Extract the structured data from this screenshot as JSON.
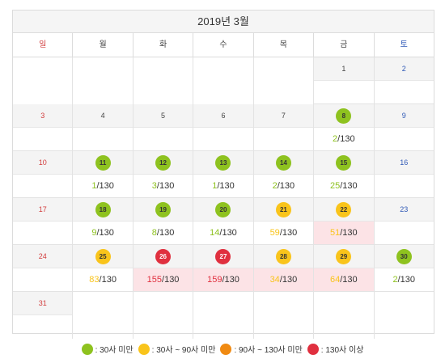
{
  "calendar": {
    "title": "2019년 3월",
    "weekdays": [
      "일",
      "월",
      "화",
      "수",
      "목",
      "금",
      "토"
    ],
    "denominator": "/130",
    "weeks": [
      [
        null,
        null,
        null,
        null,
        null,
        {
          "day": "1"
        },
        {
          "day": "2"
        }
      ],
      [
        {
          "day": "3"
        },
        {
          "day": "4"
        },
        {
          "day": "5"
        },
        {
          "day": "6"
        },
        {
          "day": "7"
        },
        {
          "day": "8",
          "status": "green",
          "count": "2"
        },
        {
          "day": "9"
        }
      ],
      [
        {
          "day": "10"
        },
        {
          "day": "11",
          "status": "green",
          "count": "1"
        },
        {
          "day": "12",
          "status": "green",
          "count": "3"
        },
        {
          "day": "13",
          "status": "green",
          "count": "1"
        },
        {
          "day": "14",
          "status": "green",
          "count": "2"
        },
        {
          "day": "15",
          "status": "green",
          "count": "25"
        },
        {
          "day": "16"
        }
      ],
      [
        {
          "day": "17"
        },
        {
          "day": "18",
          "status": "green",
          "count": "9"
        },
        {
          "day": "19",
          "status": "green",
          "count": "8"
        },
        {
          "day": "20",
          "status": "green",
          "count": "14"
        },
        {
          "day": "21",
          "status": "yellow",
          "count": "59"
        },
        {
          "day": "22",
          "status": "yellow",
          "count": "51",
          "highlight": true
        },
        {
          "day": "23"
        }
      ],
      [
        {
          "day": "24"
        },
        {
          "day": "25",
          "status": "yellow",
          "count": "83"
        },
        {
          "day": "26",
          "status": "red",
          "count": "155",
          "highlight": true
        },
        {
          "day": "27",
          "status": "red",
          "count": "159",
          "highlight": true
        },
        {
          "day": "28",
          "status": "yellow",
          "count": "34",
          "highlight": true
        },
        {
          "day": "29",
          "status": "yellow",
          "count": "64",
          "highlight": true
        },
        {
          "day": "30",
          "status": "green",
          "count": "2"
        }
      ],
      [
        {
          "day": "31"
        },
        null,
        null,
        null,
        null,
        null,
        null
      ]
    ]
  },
  "legend": [
    {
      "color": "green",
      "label": ": 30사 미만"
    },
    {
      "color": "yellow",
      "label": ": 30사 ~ 90사 미만"
    },
    {
      "color": "orange",
      "label": ": 90사 ~ 130사 미만"
    },
    {
      "color": "red",
      "label": ": 130사 이상"
    }
  ],
  "colors": {
    "green": "#8ec21f",
    "yellow": "#f9c41b",
    "orange": "#f08a12",
    "red": "#e0303f",
    "highlight": "#fce3e6"
  }
}
